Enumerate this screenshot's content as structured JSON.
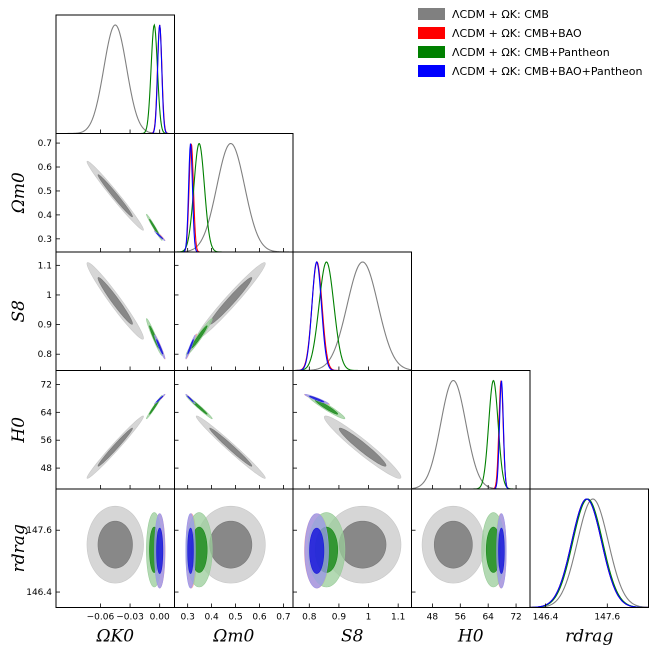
{
  "chart_data": {
    "type": "corner",
    "parameters": [
      {
        "key": "OmegaK0",
        "label": "Ω_K0",
        "range": [
          -0.105,
          0.015
        ],
        "ticks": [
          -0.06,
          -0.03,
          0.0
        ],
        "tick_labels": [
          "−0.06",
          "−0.03",
          "0.00"
        ]
      },
      {
        "key": "Omegam0",
        "label": "Ω_m0",
        "range": [
          0.245,
          0.74
        ],
        "ticks": [
          0.3,
          0.4,
          0.5,
          0.6,
          0.7
        ],
        "tick_labels": [
          "0.3",
          "0.4",
          "0.5",
          "0.6",
          "0.7"
        ]
      },
      {
        "key": "S8",
        "label": "S_8",
        "range": [
          0.745,
          1.145
        ],
        "ticks": [
          0.8,
          0.9,
          1.0,
          1.1
        ],
        "tick_labels": [
          "0.8",
          "0.9",
          "1",
          "1.1"
        ]
      },
      {
        "key": "H0",
        "label": "H_0",
        "range": [
          42,
          76
        ],
        "ticks": [
          48,
          56,
          64,
          72
        ],
        "tick_labels": [
          "48",
          "56",
          "64",
          "72"
        ]
      },
      {
        "key": "rdrag",
        "label": "r_drag",
        "range": [
          146.1,
          148.4
        ],
        "ticks": [
          146.4,
          147.6
        ],
        "tick_labels": [
          "146.4",
          "147.6"
        ]
      }
    ],
    "series": [
      {
        "name": "ΛCDM + Ω_K: CMB",
        "color": "#808080",
        "fill1": "#c8c8c8",
        "fill2": "#7a7a7a",
        "mean": [
          -0.045,
          0.48,
          0.98,
          54,
          147.32
        ],
        "sigma": [
          0.0115,
          0.058,
          0.052,
          3.6,
          0.3
        ]
      },
      {
        "name": "ΛCDM + Ω_K: CMB+BAO",
        "color": "#ff0000",
        "fill1": "#f5a0a0",
        "fill2": "#ff3030",
        "mean": [
          0.0,
          0.315,
          0.826,
          67.7,
          147.2
        ],
        "sigma": [
          0.0022,
          0.009,
          0.017,
          0.6,
          0.29
        ]
      },
      {
        "name": "ΛCDM + Ω_K: CMB+Pantheon",
        "color": "#008000",
        "fill1": "#99cc99",
        "fill2": "#1e8c1e",
        "mean": [
          -0.0055,
          0.348,
          0.858,
          65.5,
          147.22
        ],
        "sigma": [
          0.0032,
          0.022,
          0.025,
          1.35,
          0.29
        ]
      },
      {
        "name": "ΛCDM + Ω_K: CMB+BAO+Pantheon",
        "color": "#0000ff",
        "fill1": "#9999ee",
        "fill2": "#1a1adc",
        "mean": [
          0.0,
          0.312,
          0.825,
          67.8,
          147.2
        ],
        "sigma": [
          0.0021,
          0.008,
          0.016,
          0.55,
          0.29
        ]
      }
    ],
    "correlations": [
      {
        "pair": [
          "OmegaK0",
          "Omegam0"
        ],
        "rho": -0.985
      },
      {
        "pair": [
          "OmegaK0",
          "S8"
        ],
        "rho": -0.97
      },
      {
        "pair": [
          "OmegaK0",
          "H0"
        ],
        "rho": 0.985
      },
      {
        "pair": [
          "Omegam0",
          "S8"
        ],
        "rho": 0.975
      },
      {
        "pair": [
          "Omegam0",
          "H0"
        ],
        "rho": -0.985
      },
      {
        "pair": [
          "S8",
          "H0"
        ],
        "rho": -0.96
      }
    ],
    "legend_position": "top-right"
  }
}
